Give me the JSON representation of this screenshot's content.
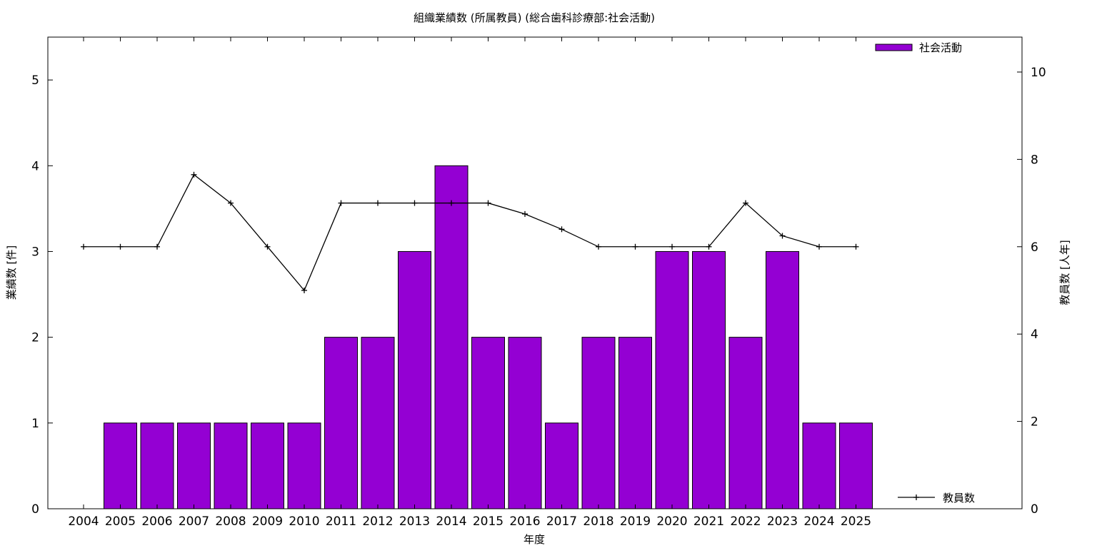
{
  "chart_data": {
    "type": "bar",
    "title": "組織業績数 (所属教員) (総合歯科診療部:社会活動)",
    "xlabel": "年度",
    "ylabel": "業績数 [件]",
    "y2label": "教員数 [人年]",
    "categories": [
      "2004",
      "2005",
      "2006",
      "2007",
      "2008",
      "2009",
      "2010",
      "2011",
      "2012",
      "2013",
      "2014",
      "2015",
      "2016",
      "2017",
      "2018",
      "2019",
      "2020",
      "2021",
      "2022",
      "2023",
      "2024",
      "2025"
    ],
    "series": [
      {
        "name": "社会活動",
        "type": "bar",
        "axis": "left",
        "color": "#9400d3",
        "values": [
          0,
          1,
          1,
          1,
          1,
          1,
          1,
          2,
          2,
          3,
          4,
          2,
          2,
          1,
          2,
          2,
          3,
          3,
          2,
          3,
          1,
          1
        ]
      },
      {
        "name": "教員数",
        "type": "line",
        "axis": "right",
        "color": "#000000",
        "values": [
          6,
          6,
          6,
          7.65,
          7,
          6,
          5,
          7,
          7,
          7,
          7,
          7,
          6.75,
          6.4,
          6,
          6,
          6,
          6,
          7,
          6.25,
          6,
          6
        ]
      }
    ],
    "ylim": [
      0,
      5.5
    ],
    "y2lim": [
      0,
      10.8
    ],
    "yticks": [
      "0",
      "1",
      "2",
      "3",
      "4",
      "5"
    ],
    "y2ticks": [
      "0",
      "2",
      "4",
      "6",
      "8",
      "10"
    ],
    "legend_position": "top-right (bars), bottom-right (line)",
    "grid": false
  }
}
